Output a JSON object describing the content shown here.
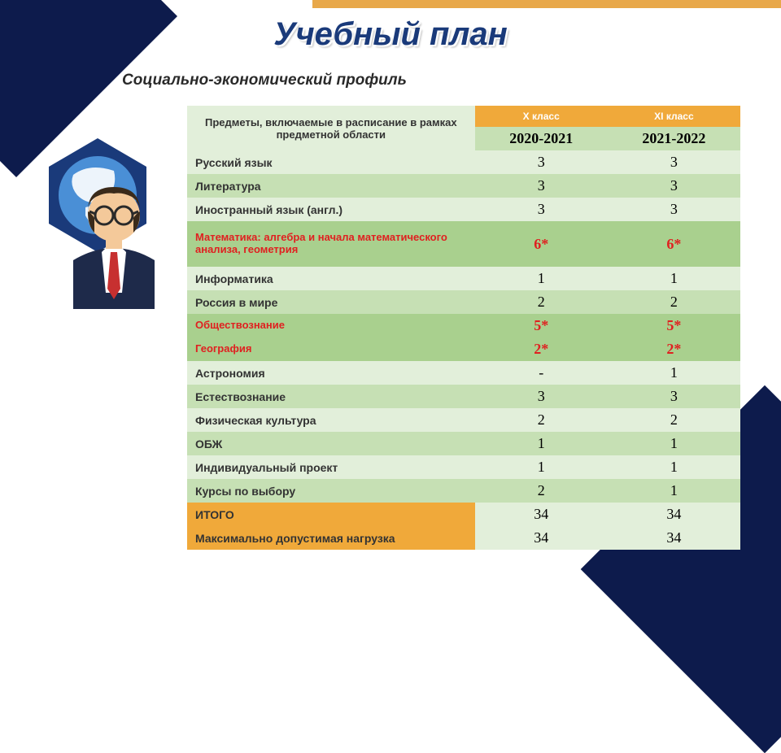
{
  "title": "Учебный план",
  "subtitle": "Социально-экономический  профиль",
  "table": {
    "header": {
      "subjects": "Предметы, включаемые в расписание в рамках предметной области",
      "class1": "X класс",
      "class2": "XI класс",
      "year1": "2020-2021",
      "year2": "2021-2022"
    },
    "rows": [
      {
        "label": "Русский язык",
        "v1": "3",
        "v2": "3",
        "shade": "a",
        "highlight": false
      },
      {
        "label": "Литература",
        "v1": "3",
        "v2": "3",
        "shade": "b",
        "highlight": false
      },
      {
        "label": "Иностранный язык (англ.)",
        "v1": "3",
        "v2": "3",
        "shade": "a",
        "highlight": false
      },
      {
        "label": "Математика: алгебра и начала математического анализа, геометрия",
        "v1": "6*",
        "v2": "6*",
        "shade": "c",
        "highlight": true,
        "tall": true
      },
      {
        "label": "Информатика",
        "v1": "1",
        "v2": "1",
        "shade": "a",
        "highlight": false
      },
      {
        "label": "Россия в мире",
        "v1": "2",
        "v2": "2",
        "shade": "b",
        "highlight": false
      },
      {
        "label": "Обществознание",
        "v1": "5*",
        "v2": "5*",
        "shade": "c",
        "highlight": true
      },
      {
        "label": "География",
        "v1": "2*",
        "v2": "2*",
        "shade": "c",
        "highlight": true
      },
      {
        "label": "Астрономия",
        "v1": "-",
        "v2": "1",
        "shade": "a",
        "highlight": false
      },
      {
        "label": "Естествознание",
        "v1": "3",
        "v2": "3",
        "shade": "b",
        "highlight": false
      },
      {
        "label": "Физическая культура",
        "v1": "2",
        "v2": "2",
        "shade": "a",
        "highlight": false
      },
      {
        "label": "ОБЖ",
        "v1": "1",
        "v2": "1",
        "shade": "b",
        "highlight": false
      },
      {
        "label": "Индивидуальный проект",
        "v1": "1",
        "v2": "1",
        "shade": "a",
        "highlight": false
      },
      {
        "label": "Курсы по выбору",
        "v1": "2",
        "v2": "1",
        "shade": "b",
        "highlight": false
      }
    ],
    "totals": [
      {
        "label": "ИТОГО",
        "v1": "34",
        "v2": "34"
      },
      {
        "label": "Максимально допустимая нагрузка",
        "v1": "34",
        "v2": "34"
      }
    ]
  },
  "colors": {
    "accent_dark": "#0d1b4c",
    "accent_orange": "#f0a93a",
    "green_a": "#e2efda",
    "green_b": "#c6e0b4",
    "green_c": "#a9d08e",
    "red": "#e02020",
    "title": "#1a3a7a"
  },
  "typography": {
    "title_fontsize": 40,
    "subtitle_fontsize": 19,
    "row_fontsize": 14,
    "num_fontsize": 18
  }
}
